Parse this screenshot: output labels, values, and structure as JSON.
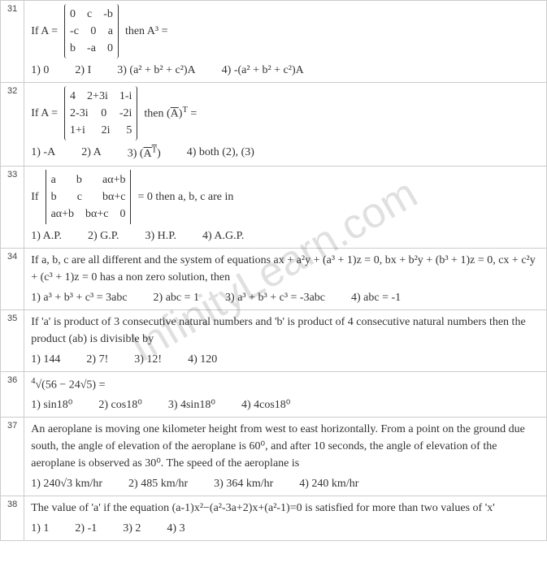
{
  "watermark": "InfinityLearn.com",
  "questions": [
    {
      "num": "31",
      "prefix": "If A =",
      "matrix": [
        [
          "0",
          "c",
          "-b"
        ],
        [
          "-c",
          "0",
          "a"
        ],
        [
          "b",
          "-a",
          "0"
        ]
      ],
      "suffix": "then A³ =",
      "opts": [
        "1)  0",
        "2)  I",
        "3)  (a² + b² + c²)A",
        "4)  -(a² + b² + c²)A"
      ]
    },
    {
      "num": "32",
      "prefix": "If A =",
      "matrix": [
        [
          "4",
          "2+3i",
          "1-i"
        ],
        [
          "2-3i",
          "0",
          "-2i"
        ],
        [
          "1+i",
          "2i",
          "5"
        ]
      ],
      "suffix_html": "then (<span class='bar'>A</span>)<sup>T</sup> =",
      "opts_html": [
        "1)  -A",
        "2)  A",
        "3)  (<span class='bar'>A<sup>T</sup></span>)",
        "4)  both (2), (3)"
      ]
    },
    {
      "num": "33",
      "prefix": "If",
      "det": [
        [
          "a",
          "b",
          "aα+b"
        ],
        [
          "b",
          "c",
          "bα+c"
        ],
        [
          "aα+b",
          "bα+c",
          "0"
        ]
      ],
      "suffix": "= 0 then a, b, c are in",
      "opts": [
        "1)  A.P.",
        "2)  G.P.",
        "3)  H.P.",
        "4)  A.G.P."
      ]
    },
    {
      "num": "34",
      "body": "If a, b, c are all different and the system of equations ax + a²y + (a³ + 1)z = 0, bx + b²y + (b³ + 1)z = 0, cx + c²y + (c³ + 1)z = 0 has a non zero solution, then",
      "opts": [
        "1)  a³ + b³ + c³ = 3abc",
        "2)  abc = 1",
        "3)  a³ + b³ + c³ = -3abc",
        "4)  abc = -1"
      ]
    },
    {
      "num": "35",
      "body": "If 'a' is product of 3 consecutive natural numbers and 'b' is product of 4 consecutive natural numbers then the product (ab) is divisible by",
      "opts": [
        "1)  144",
        "2)  7!",
        "3)  12!",
        "4)  120"
      ]
    },
    {
      "num": "36",
      "body_html": "<sup>4</sup>√(56 − 24√5)  =",
      "opts": [
        "1)  sin18⁰",
        "2)  cos18⁰",
        "3)  4sin18⁰",
        "4)  4cos18⁰"
      ]
    },
    {
      "num": "37",
      "body": "An aeroplane is moving one kilometer height from west to east horizontally. From a point on the ground due south, the angle of elevation of the aeroplane is 60⁰, and after 10 seconds, the angle of elevation of the aeroplane is observed as 30⁰. The speed of the aeroplane is",
      "opts": [
        "1)  240√3  km/hr",
        "2)  485  km/hr",
        "3)  364  km/hr",
        "4)  240  km/hr"
      ]
    },
    {
      "num": "38",
      "body": "The value of 'a' if the equation (a-1)x²−(a²-3a+2)x+(a²-1)=0 is satisfied for more than two values of 'x'",
      "opts": [
        "1)  1",
        "2)  -1",
        "3)  2",
        "4)  3"
      ]
    }
  ],
  "style": {
    "border_color": "#cccccc",
    "text_color": "#333333",
    "font_family": "Times New Roman",
    "font_size_pt": 11,
    "num_font_size_pt": 8
  }
}
